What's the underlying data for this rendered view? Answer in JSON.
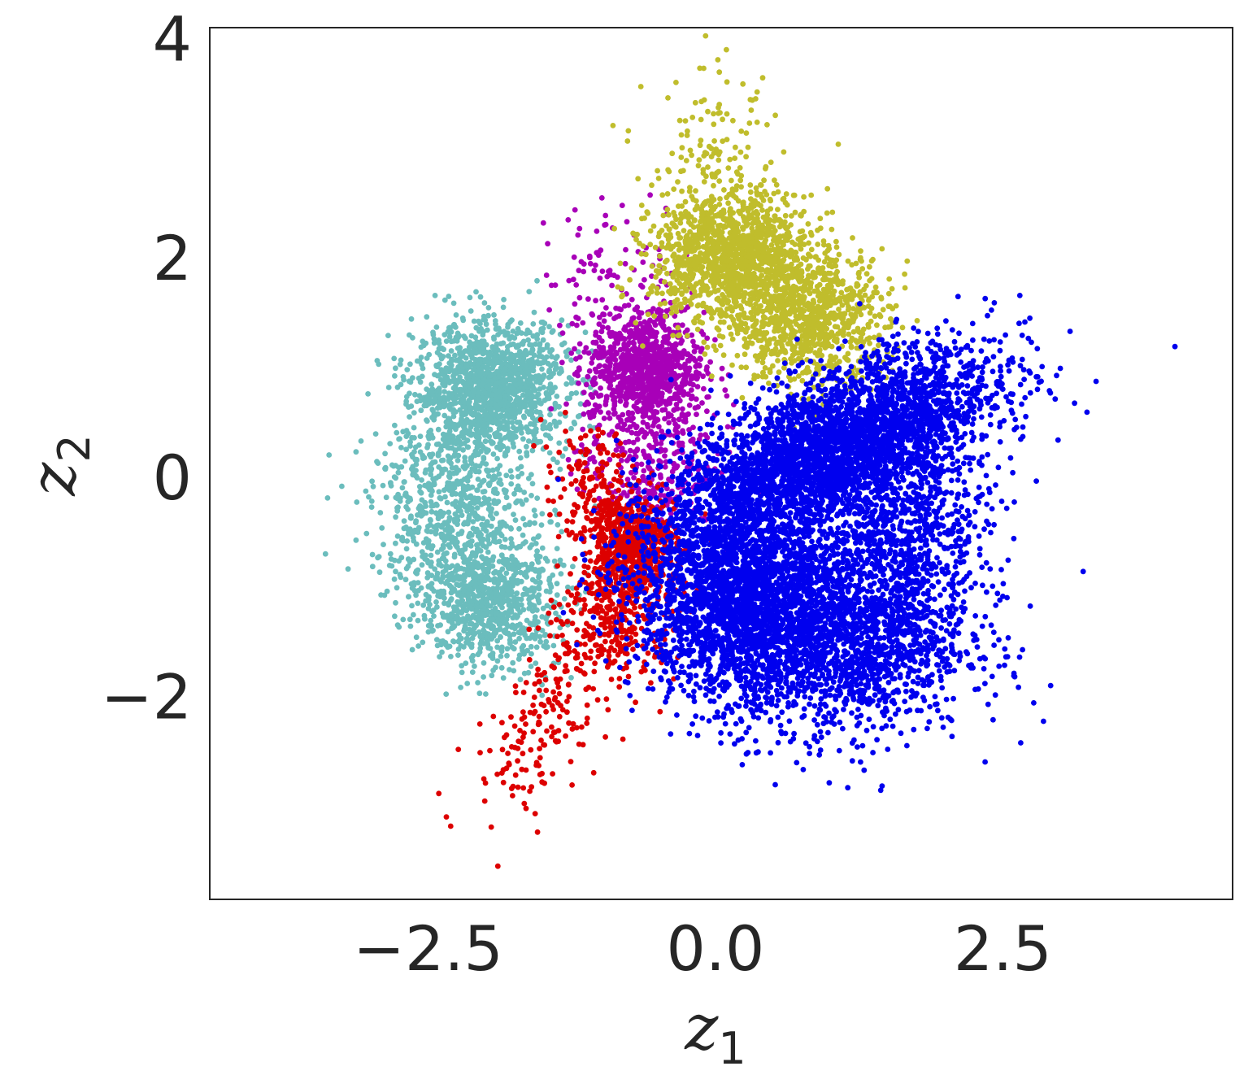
{
  "chart_data": {
    "type": "scatter",
    "title": "",
    "xlabel": "z",
    "xlabel_sub": "1",
    "ylabel": "z",
    "ylabel_sub": "2",
    "xlim": [
      -4.4,
      4.5
    ],
    "ylim": [
      -3.85,
      4.1
    ],
    "xticks": [
      -2.5,
      0.0,
      2.5
    ],
    "xtick_labels": [
      "−2.5",
      "0.0",
      "2.5"
    ],
    "yticks": [
      -2,
      0,
      2,
      4
    ],
    "ytick_labels": [
      "−2",
      "0",
      "2",
      "4"
    ],
    "grid": false,
    "legend": "none",
    "series": [
      {
        "color": "#6bbdbd",
        "clusters": [
          {
            "cx": -1.95,
            "cy": 0.8,
            "sx": 0.33,
            "sy": 0.3,
            "n": 1400,
            "rho": 0
          },
          {
            "cx": -2.3,
            "cy": -0.3,
            "sx": 0.35,
            "sy": 0.42,
            "n": 700,
            "rho": 0
          },
          {
            "cx": -1.95,
            "cy": -1.15,
            "sx": 0.3,
            "sy": 0.3,
            "n": 800,
            "rho": 0
          }
        ]
      },
      {
        "color": "#a800b8",
        "clusters": [
          {
            "cx": -0.6,
            "cy": 1.0,
            "sx": 0.25,
            "sy": 0.25,
            "n": 900,
            "rho": 0
          },
          {
            "cx": -0.6,
            "cy": 0.2,
            "sx": 0.3,
            "sy": 0.35,
            "n": 350,
            "rho": 0
          },
          {
            "cx": -0.8,
            "cy": 1.9,
            "sx": 0.35,
            "sy": 0.3,
            "n": 100,
            "rho": 0
          }
        ]
      },
      {
        "color": "#c0bd2c",
        "clusters": [
          {
            "cx": 0.15,
            "cy": 2.0,
            "sx": 0.35,
            "sy": 0.3,
            "n": 1300,
            "rho": 0
          },
          {
            "cx": 0.8,
            "cy": 1.45,
            "sx": 0.35,
            "sy": 0.3,
            "n": 900,
            "rho": 0
          },
          {
            "cx": 0.0,
            "cy": 2.9,
            "sx": 0.3,
            "sy": 0.4,
            "n": 120,
            "rho": 0
          }
        ]
      },
      {
        "color": "#dd0000",
        "clusters": [
          {
            "cx": -0.75,
            "cy": -0.6,
            "sx": 0.2,
            "sy": 0.22,
            "n": 700,
            "rho": 0
          },
          {
            "cx": -0.85,
            "cy": -1.3,
            "sx": 0.25,
            "sy": 0.3,
            "n": 300,
            "rho": 0
          },
          {
            "cx": -1.5,
            "cy": -2.2,
            "sx": 0.3,
            "sy": 0.45,
            "n": 180,
            "rho": 0.6
          },
          {
            "cx": -1.1,
            "cy": -0.05,
            "sx": 0.2,
            "sy": 0.25,
            "n": 120,
            "rho": 0
          }
        ]
      },
      {
        "color": "#0000ee",
        "clusters": [
          {
            "cx": 1.0,
            "cy": 0.25,
            "sx": 0.7,
            "sy": 0.45,
            "n": 3500,
            "rho": 0.65
          },
          {
            "cx": 0.2,
            "cy": -1.1,
            "sx": 0.45,
            "sy": 0.45,
            "n": 2200,
            "rho": 0
          },
          {
            "cx": 1.1,
            "cy": -1.45,
            "sx": 0.55,
            "sy": 0.45,
            "n": 1800,
            "rho": 0
          },
          {
            "cx": 1.7,
            "cy": -0.45,
            "sx": 0.35,
            "sy": 0.45,
            "n": 700,
            "rho": 0
          }
        ]
      }
    ]
  }
}
